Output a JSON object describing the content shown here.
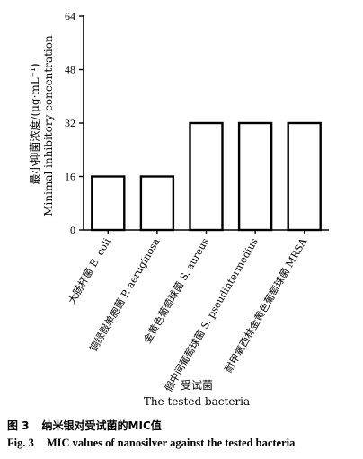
{
  "chart_data": {
    "type": "bar",
    "categories": [
      "大肠杆菌 E. coli",
      "铜绿假单胞菌 P. aeruginosa",
      "金黄色葡萄球菌 S. aureus",
      "假中间葡萄球菌 S. pseudintermedius",
      "耐甲氧西林金黄色葡萄球菌 MRSA"
    ],
    "values": [
      16,
      16,
      32,
      32,
      32
    ],
    "ylim": [
      0,
      64
    ],
    "yticks": [
      0,
      16,
      32,
      48,
      64
    ],
    "ylabel_cn": "最小抑菌浓度/(μg·mL⁻¹)",
    "ylabel_en": "Minimal inhibitory concentration",
    "xlabel_cn": "受试菌",
    "xlabel_en": "The tested bacteria",
    "bar_fill": "#ffffff",
    "bar_stroke": "#000000",
    "grid": false
  },
  "caption": {
    "cn_number": "图 3",
    "cn_text": "纳米银对受试菌的MIC值",
    "en_number": "Fig. 3",
    "en_text": "MIC values of nanosilver against the tested bacteria"
  }
}
